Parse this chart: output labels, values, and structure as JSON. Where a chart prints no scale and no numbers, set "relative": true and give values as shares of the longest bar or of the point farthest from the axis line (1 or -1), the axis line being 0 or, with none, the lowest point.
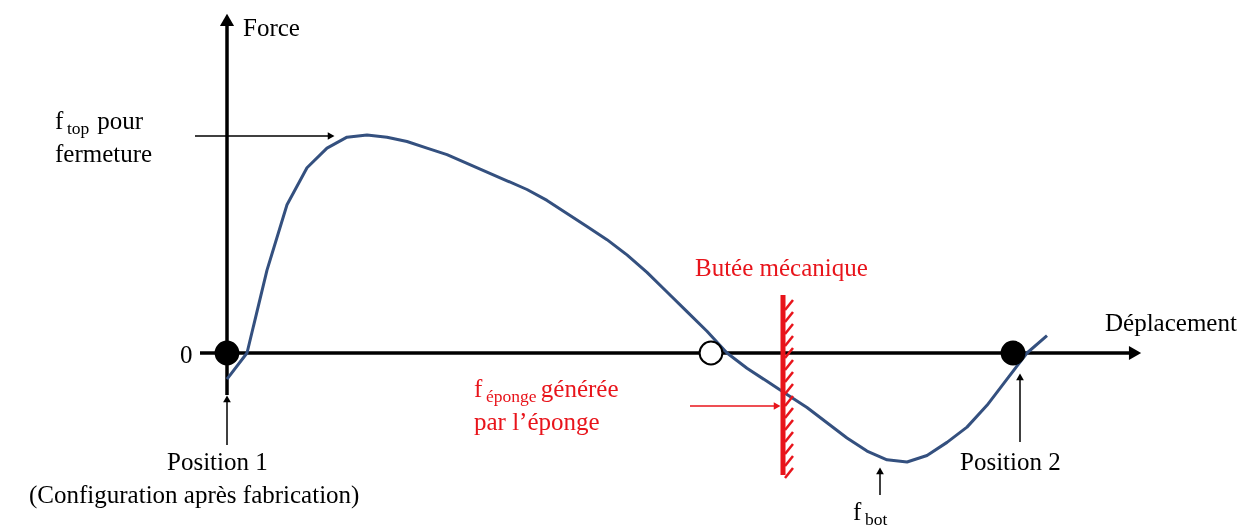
{
  "chart_data": {
    "type": "line",
    "relative": true,
    "xlabel": "Déplacement",
    "ylabel": "Force",
    "categories": [
      null,
      null,
      null,
      null,
      null,
      null,
      null,
      null,
      null,
      null,
      null,
      null,
      null,
      null,
      null,
      null,
      null,
      null,
      null,
      null,
      null,
      null,
      null,
      null,
      null,
      null,
      null,
      null,
      null,
      null,
      null,
      null,
      null,
      null,
      null,
      null,
      null,
      null,
      null,
      null,
      null,
      null
    ],
    "series": [
      {
        "type": "line",
        "color": "#34507f",
        "values": [
          -0.12,
          0,
          0.38,
          0.68,
          0.85,
          0.94,
          0.99,
          1.0,
          0.99,
          0.97,
          0.94,
          0.91,
          0.87,
          0.83,
          0.79,
          0.75,
          0.7,
          0.64,
          0.58,
          0.52,
          0.45,
          0.37,
          0.28,
          0.19,
          0.1,
          0,
          -0.07,
          -0.13,
          -0.19,
          -0.25,
          -0.32,
          -0.39,
          -0.45,
          -0.49,
          -0.5,
          -0.47,
          -0.41,
          -0.34,
          -0.24,
          -0.12,
          0,
          0.08
        ]
      }
    ],
    "line_style": "solid",
    "annotations": [
      "0",
      "f$_{top}$ pour\nfermeture",
      "f$_{éponge}$ générée\npar l’éponge",
      "f$_{bot}$",
      "Position 1\n(Configuration après fabrication)",
      "Position 2",
      "Butée mécanique"
    ]
  }
}
